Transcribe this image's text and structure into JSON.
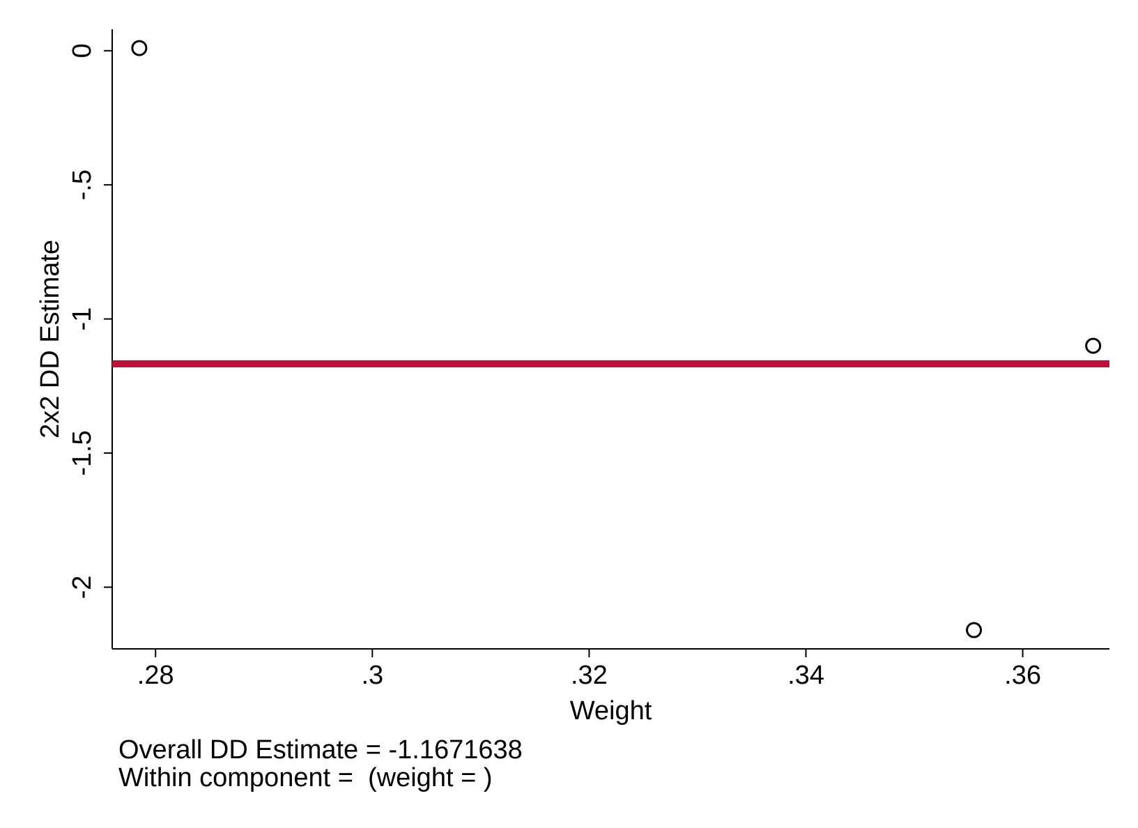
{
  "chart_data": {
    "type": "scatter",
    "xlabel": "Weight",
    "ylabel": "2x2 DD Estimate",
    "xlim": [
      0.276,
      0.368
    ],
    "ylim": [
      -2.23,
      0.08
    ],
    "xticks": [
      0.28,
      0.3,
      0.32,
      0.34,
      0.36
    ],
    "xtick_labels": [
      ".28",
      ".3",
      ".32",
      ".34",
      ".36"
    ],
    "yticks": [
      0,
      -0.5,
      -1,
      -1.5,
      -2
    ],
    "ytick_labels": [
      "0",
      "-.5",
      "-1",
      "-1.5",
      "-2"
    ],
    "points": [
      {
        "x": 0.2785,
        "y": 0.01
      },
      {
        "x": 0.3665,
        "y": -1.1
      },
      {
        "x": 0.3555,
        "y": -2.16
      }
    ],
    "reference_line": {
      "y": -1.1671638
    },
    "marker_style": "hollow-circle",
    "line_color": "#c0103a",
    "grid": false
  },
  "notes": {
    "overall": "Overall DD Estimate = -1.1671638",
    "within": "Within component =  (weight = )"
  }
}
